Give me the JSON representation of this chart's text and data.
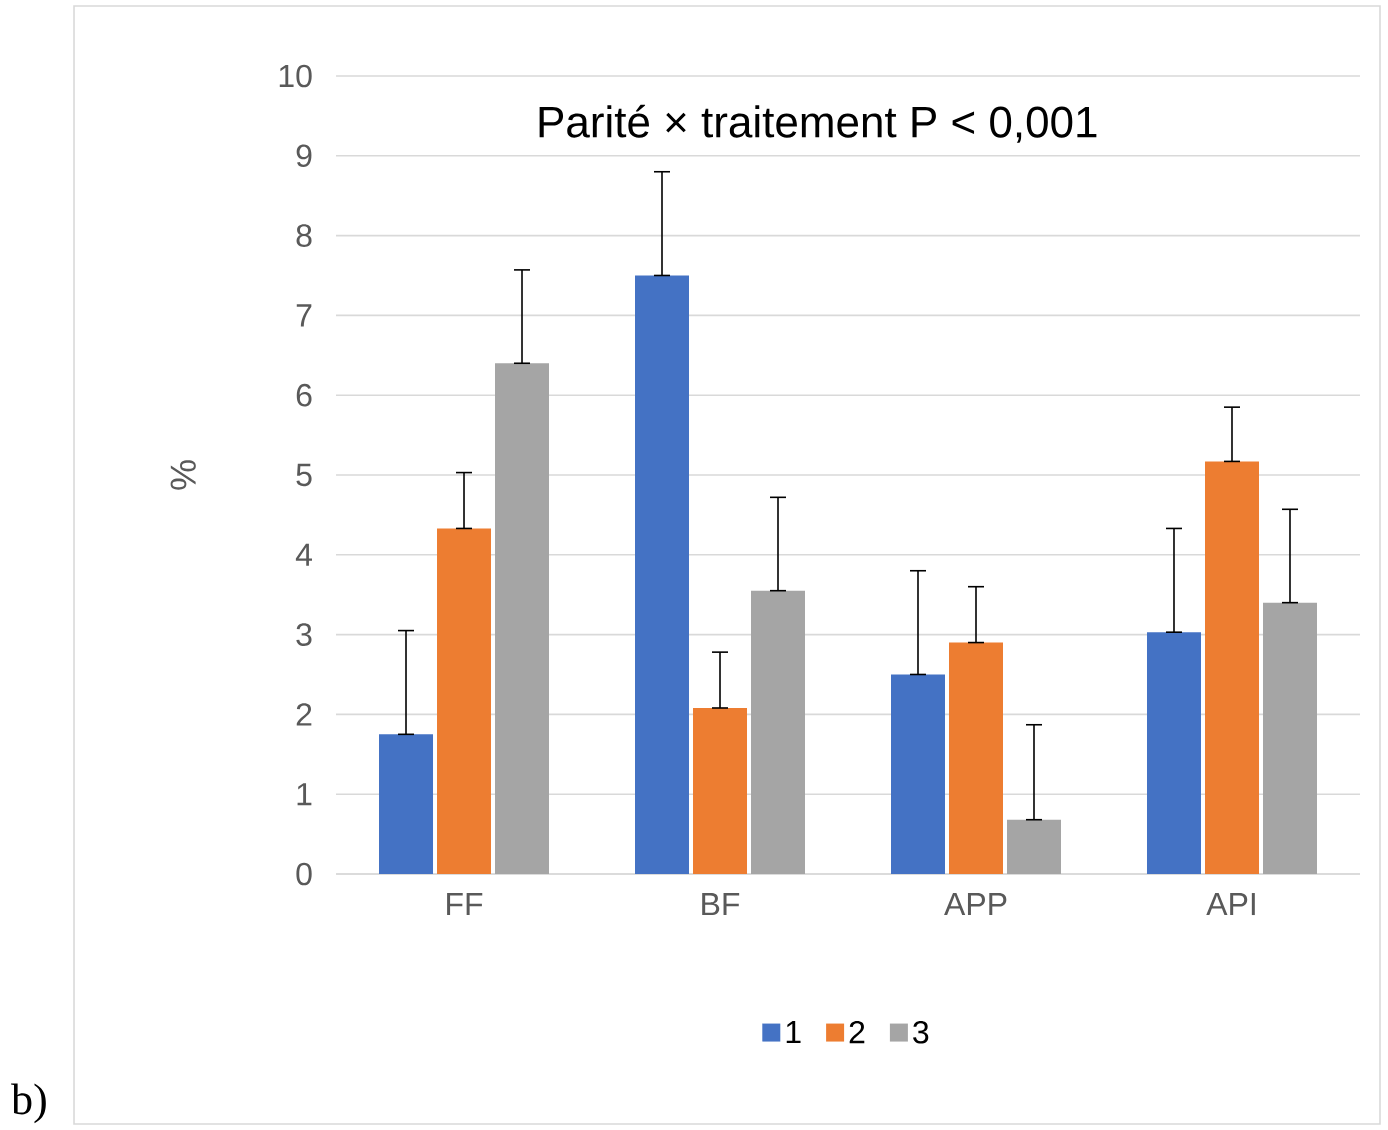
{
  "chart_data": {
    "type": "bar",
    "ylabel": "%",
    "categories": [
      "FF",
      "BF",
      "APP",
      "API"
    ],
    "series": [
      {
        "name": "1",
        "color": "#4472c4",
        "values": [
          1.75,
          7.5,
          2.5,
          3.03
        ],
        "errors": [
          [
            1.75,
            3.05
          ],
          [
            7.5,
            8.8
          ],
          [
            2.5,
            3.8
          ],
          [
            3.03,
            4.33
          ]
        ]
      },
      {
        "name": "2",
        "color": "#ed7d31",
        "values": [
          4.33,
          2.08,
          2.9,
          5.17
        ],
        "errors": [
          [
            4.33,
            5.03
          ],
          [
            2.08,
            2.78
          ],
          [
            2.9,
            3.6
          ],
          [
            5.17,
            5.85
          ]
        ]
      },
      {
        "name": "3",
        "color": "#a5a5a5",
        "values": [
          6.4,
          3.55,
          0.68,
          3.4
        ],
        "errors": [
          [
            6.4,
            7.57
          ],
          [
            3.55,
            4.72
          ],
          [
            0.68,
            1.87
          ],
          [
            3.4,
            4.57
          ]
        ]
      }
    ],
    "ylim": [
      0,
      10
    ],
    "yticks": [
      0,
      1,
      2,
      3,
      4,
      5,
      6,
      7,
      8,
      9,
      10
    ],
    "grid": "y",
    "legend": "bottom",
    "annotations": [
      "Parité × traitement P < 0,001",
      "b)"
    ]
  }
}
